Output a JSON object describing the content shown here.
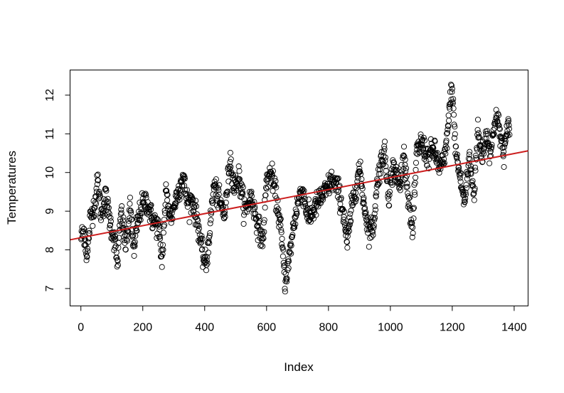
{
  "chart_data": {
    "type": "scatter",
    "title": "",
    "xlabel": "Index",
    "ylabel": "Temperatures",
    "xlim": [
      -35,
      1445
    ],
    "ylim": [
      6.55,
      12.65
    ],
    "x_ticks": [
      0,
      200,
      400,
      600,
      800,
      1000,
      1200,
      1400
    ],
    "y_ticks": [
      7,
      8,
      9,
      10,
      11,
      12
    ],
    "grid": false,
    "legend": "none",
    "point_color": "#000000",
    "n_points": 1385,
    "profile": {
      "x": [
        0,
        10,
        20,
        30,
        45,
        55,
        65,
        80,
        95,
        110,
        118,
        130,
        145,
        160,
        172,
        180,
        195,
        210,
        230,
        250,
        262,
        275,
        290,
        310,
        330,
        345,
        360,
        378,
        392,
        405,
        415,
        430,
        445,
        465,
        482,
        495,
        510,
        530,
        550,
        570,
        588,
        600,
        615,
        630,
        645,
        660,
        670,
        685,
        700,
        715,
        735,
        750,
        770,
        790,
        810,
        830,
        850,
        860,
        875,
        900,
        915,
        930,
        945,
        960,
        980,
        995,
        1010,
        1030,
        1045,
        1060,
        1072,
        1085,
        1100,
        1120,
        1140,
        1160,
        1175,
        1190,
        1198,
        1212,
        1225,
        1240,
        1255,
        1270,
        1282,
        1295,
        1310,
        1325,
        1340,
        1350,
        1365,
        1385
      ],
      "y": [
        8.3,
        8.5,
        7.8,
        8.8,
        9.2,
        9.8,
        8.9,
        9.4,
        8.7,
        8.2,
        7.6,
        9.0,
        8.1,
        9.1,
        7.9,
        8.6,
        9.1,
        9.3,
        8.8,
        8.6,
        7.7,
        9.5,
        8.8,
        9.4,
        9.9,
        9.2,
        9.3,
        8.7,
        7.9,
        7.6,
        8.4,
        9.7,
        9.3,
        8.9,
        10.4,
        9.6,
        9.9,
        9.0,
        9.4,
        8.7,
        8.2,
        9.8,
        10.0,
        9.4,
        8.6,
        7.2,
        7.6,
        8.5,
        9.2,
        9.6,
        8.8,
        9.0,
        9.3,
        9.5,
        9.8,
        9.6,
        8.9,
        8.1,
        9.1,
        10.1,
        9.2,
        8.5,
        8.6,
        9.9,
        10.6,
        9.4,
        10.2,
        9.6,
        10.5,
        9.2,
        8.4,
        10.5,
        10.8,
        10.4,
        10.6,
        10.1,
        10.3,
        11.5,
        12.3,
        10.5,
        9.9,
        9.2,
        10.4,
        9.4,
        11.1,
        10.4,
        11.0,
        10.5,
        11.5,
        11.2,
        10.5,
        11.3
      ],
      "noise_sd": 0.15
    },
    "trend_line": {
      "name": "",
      "color": "#cc1f1f",
      "x": [
        -35,
        1445
      ],
      "y": [
        8.26,
        10.56
      ]
    }
  }
}
